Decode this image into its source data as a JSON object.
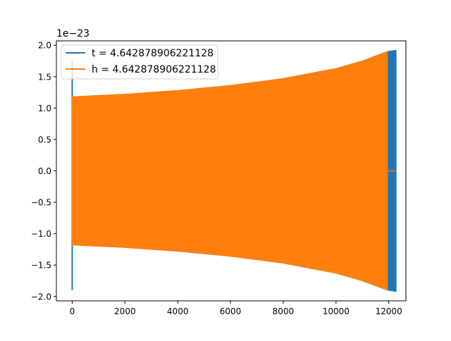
{
  "chart_data": {
    "type": "line",
    "title": "",
    "xlabel": "",
    "ylabel": "",
    "offset_text": "1e−23",
    "xlim": [
      -600,
      12650
    ],
    "ylim": [
      -2.07,
      2.07
    ],
    "xticks": [
      0,
      2000,
      4000,
      6000,
      8000,
      10000,
      12000
    ],
    "xtick_labels": [
      "0",
      "2000",
      "4000",
      "6000",
      "8000",
      "10000",
      "12000"
    ],
    "yticks": [
      -2.0,
      -1.5,
      -1.0,
      -0.5,
      0.0,
      0.5,
      1.0,
      1.5,
      2.0
    ],
    "ytick_labels": [
      "−2.0",
      "−1.5",
      "−1.0",
      "−0.5",
      "0.0",
      "0.5",
      "1.0",
      "1.5",
      "2.0"
    ],
    "grid": false,
    "legend_position": "top-left",
    "series": [
      {
        "name": "t = 4.642878906221128",
        "color": "#1f77b4",
        "x_range": [
          0,
          12280
        ],
        "spike": {
          "x": 0,
          "min": -1.9,
          "max": 1.75
        },
        "envelope": [
          [
            0,
            1.18
          ],
          [
            2000,
            1.22
          ],
          [
            4000,
            1.28
          ],
          [
            6000,
            1.36
          ],
          [
            8000,
            1.47
          ],
          [
            10000,
            1.63
          ],
          [
            11000,
            1.75
          ],
          [
            11950,
            1.9
          ],
          [
            12280,
            1.92
          ]
        ]
      },
      {
        "name": "h = 4.642878906221128",
        "color": "#ff7f0e",
        "x_range": [
          0,
          11950
        ],
        "tail": {
          "x_range": [
            11950,
            12280
          ],
          "value": 0.0
        },
        "envelope": [
          [
            0,
            1.18
          ],
          [
            2000,
            1.22
          ],
          [
            4000,
            1.28
          ],
          [
            6000,
            1.36
          ],
          [
            8000,
            1.47
          ],
          [
            10000,
            1.63
          ],
          [
            11000,
            1.75
          ],
          [
            11950,
            1.9
          ]
        ]
      }
    ]
  }
}
